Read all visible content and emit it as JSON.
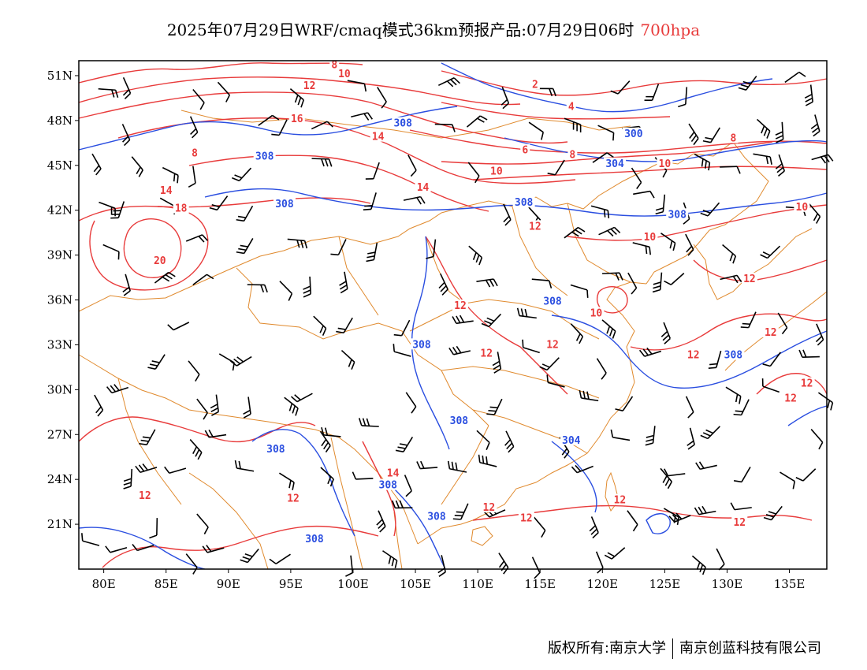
{
  "title": {
    "main": "2025年07月29日WRF/cmaq模式36km预报产品:07月29日06时",
    "level": "700hpa",
    "level_color": "#e83b3b"
  },
  "axes": {
    "lat_labels": [
      "51N",
      "48N",
      "45N",
      "42N",
      "39N",
      "36N",
      "33N",
      "30N",
      "27N",
      "24N",
      "21N"
    ],
    "lat_values": [
      51,
      48,
      45,
      42,
      39,
      36,
      33,
      30,
      27,
      24,
      21
    ],
    "lon_labels": [
      "80E",
      "85E",
      "90E",
      "95E",
      "100E",
      "105E",
      "110E",
      "115E",
      "120E",
      "125E",
      "130E",
      "135E"
    ],
    "lon_values": [
      80,
      85,
      90,
      95,
      100,
      105,
      110,
      115,
      120,
      125,
      130,
      135
    ],
    "lon_range": [
      78,
      138
    ],
    "lat_range": [
      18,
      52
    ]
  },
  "contours": {
    "temperature_color": "#e83b3b",
    "height_color": "#2a4ee0",
    "border_color": "#e08a2e",
    "temperature_labels": [
      {
        "text": "8",
        "lon": 98.5,
        "lat": 51.6
      },
      {
        "text": "10",
        "lon": 99.3,
        "lat": 51.0
      },
      {
        "text": "12",
        "lon": 96.5,
        "lat": 50.2
      },
      {
        "text": "16",
        "lon": 95.5,
        "lat": 48.0
      },
      {
        "text": "14",
        "lon": 102.0,
        "lat": 46.8
      },
      {
        "text": "8",
        "lon": 87.3,
        "lat": 45.7
      },
      {
        "text": "14",
        "lon": 85.0,
        "lat": 43.2
      },
      {
        "text": "18",
        "lon": 86.2,
        "lat": 42.0
      },
      {
        "text": "20",
        "lon": 84.5,
        "lat": 38.5
      },
      {
        "text": "14",
        "lon": 105.6,
        "lat": 43.4
      },
      {
        "text": "2",
        "lon": 114.6,
        "lat": 50.3
      },
      {
        "text": "4",
        "lon": 117.5,
        "lat": 48.8
      },
      {
        "text": "6",
        "lon": 113.8,
        "lat": 45.9
      },
      {
        "text": "8",
        "lon": 117.6,
        "lat": 45.6
      },
      {
        "text": "10",
        "lon": 111.5,
        "lat": 44.5
      },
      {
        "text": "10",
        "lon": 125.0,
        "lat": 45.0
      },
      {
        "text": "8",
        "lon": 130.5,
        "lat": 46.7
      },
      {
        "text": "12",
        "lon": 114.6,
        "lat": 40.8
      },
      {
        "text": "10",
        "lon": 123.8,
        "lat": 40.1
      },
      {
        "text": "10",
        "lon": 136.0,
        "lat": 42.1
      },
      {
        "text": "12",
        "lon": 108.6,
        "lat": 35.5
      },
      {
        "text": "10",
        "lon": 119.5,
        "lat": 35.0
      },
      {
        "text": "12",
        "lon": 131.8,
        "lat": 37.3
      },
      {
        "text": "12",
        "lon": 133.5,
        "lat": 33.7
      },
      {
        "text": "12",
        "lon": 116.0,
        "lat": 32.9
      },
      {
        "text": "12",
        "lon": 110.7,
        "lat": 32.3
      },
      {
        "text": "12",
        "lon": 127.3,
        "lat": 32.2
      },
      {
        "text": "12",
        "lon": 136.4,
        "lat": 30.3
      },
      {
        "text": "12",
        "lon": 135.1,
        "lat": 29.3
      },
      {
        "text": "14",
        "lon": 103.2,
        "lat": 24.3
      },
      {
        "text": "12",
        "lon": 83.3,
        "lat": 22.8
      },
      {
        "text": "12",
        "lon": 95.2,
        "lat": 22.6
      },
      {
        "text": "12",
        "lon": 110.9,
        "lat": 22.0
      },
      {
        "text": "12",
        "lon": 113.9,
        "lat": 21.3
      },
      {
        "text": "12",
        "lon": 121.4,
        "lat": 22.5
      },
      {
        "text": "12",
        "lon": 131.0,
        "lat": 21.0
      }
    ],
    "height_labels": [
      {
        "text": "308",
        "lon": 104.0,
        "lat": 47.7
      },
      {
        "text": "300",
        "lon": 122.5,
        "lat": 47.0
      },
      {
        "text": "308",
        "lon": 92.9,
        "lat": 45.5
      },
      {
        "text": "304",
        "lon": 121.0,
        "lat": 45.0
      },
      {
        "text": "308",
        "lon": 94.5,
        "lat": 42.3
      },
      {
        "text": "308",
        "lon": 113.7,
        "lat": 42.4
      },
      {
        "text": "308",
        "lon": 126.0,
        "lat": 41.6
      },
      {
        "text": "308",
        "lon": 116.0,
        "lat": 35.8
      },
      {
        "text": "308",
        "lon": 105.5,
        "lat": 32.9
      },
      {
        "text": "308",
        "lon": 130.5,
        "lat": 32.2
      },
      {
        "text": "308",
        "lon": 108.5,
        "lat": 27.8
      },
      {
        "text": "304",
        "lon": 117.5,
        "lat": 26.5
      },
      {
        "text": "308",
        "lon": 93.8,
        "lat": 25.9
      },
      {
        "text": "308",
        "lon": 102.8,
        "lat": 23.5
      },
      {
        "text": "308",
        "lon": 106.7,
        "lat": 21.4
      },
      {
        "text": "308",
        "lon": 96.9,
        "lat": 19.9
      }
    ]
  },
  "footer": {
    "copyright": "版权所有:南京大学",
    "company": "南京创蓝科技有限公司"
  }
}
